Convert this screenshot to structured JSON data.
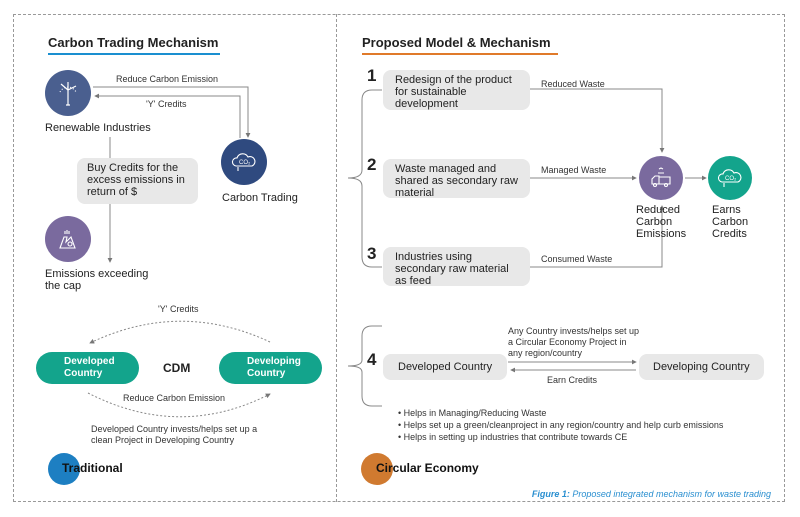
{
  "traditional": {
    "title": "Carbon Trading Mechanism",
    "reduce_label": "Reduce Carbon Emission",
    "credits_label": "'Y' Credits",
    "renewable_label": "Renewable Industries",
    "carbon_trading_label": "Carbon Trading",
    "buy_credits_box": "Buy Credits for the excess emissions in return of $",
    "emissions_label": "Emissions exceeding the cap",
    "cdm": {
      "credits_label": "'Y' Credits",
      "developed": "Developed Country",
      "center": "CDM",
      "developing": "Developing Country",
      "reduce_label": "Reduce Carbon Emission",
      "note": "Developed Country invests/helps set up a clean Project in Developing Country"
    },
    "badge": "Traditional"
  },
  "circular": {
    "title": "Proposed Model & Mechanism",
    "steps": [
      {
        "num": "1",
        "text": "Redesign of the product for sustainable development",
        "flow": "Reduced Waste"
      },
      {
        "num": "2",
        "text": "Waste managed and shared as secondary raw material",
        "flow": "Managed Waste"
      },
      {
        "num": "3",
        "text": "Industries using secondary raw material as feed",
        "flow": "Consumed Waste"
      }
    ],
    "reduced_label": "Reduced Carbon Emissions",
    "earns_label": "Earns Carbon Credits",
    "step4": {
      "num": "4",
      "developed": "Developed Country",
      "developing": "Developing Country",
      "invest_label": "Any Country invests/helps set up a Circular Economy Project in any region/country",
      "earn_label": "Earn Credits",
      "bullets": [
        "Helps in Managing/Reducing Waste",
        "Helps set up a green/cleanproject in any region/country and help curb emissions",
        "Helps in setting up industries that contribute towards CE"
      ]
    },
    "badge": "Circular Economy"
  },
  "caption": {
    "prefix": "Figure 1:",
    "text": " Proposed integrated mechanism for waste trading"
  },
  "colors": {
    "blue": "#1d7fc2",
    "orange": "#d07a30",
    "teal": "#13a48c",
    "navy": "#2f4a7f",
    "slate": "#4a5f8f",
    "purple": "#7a6a9e"
  }
}
